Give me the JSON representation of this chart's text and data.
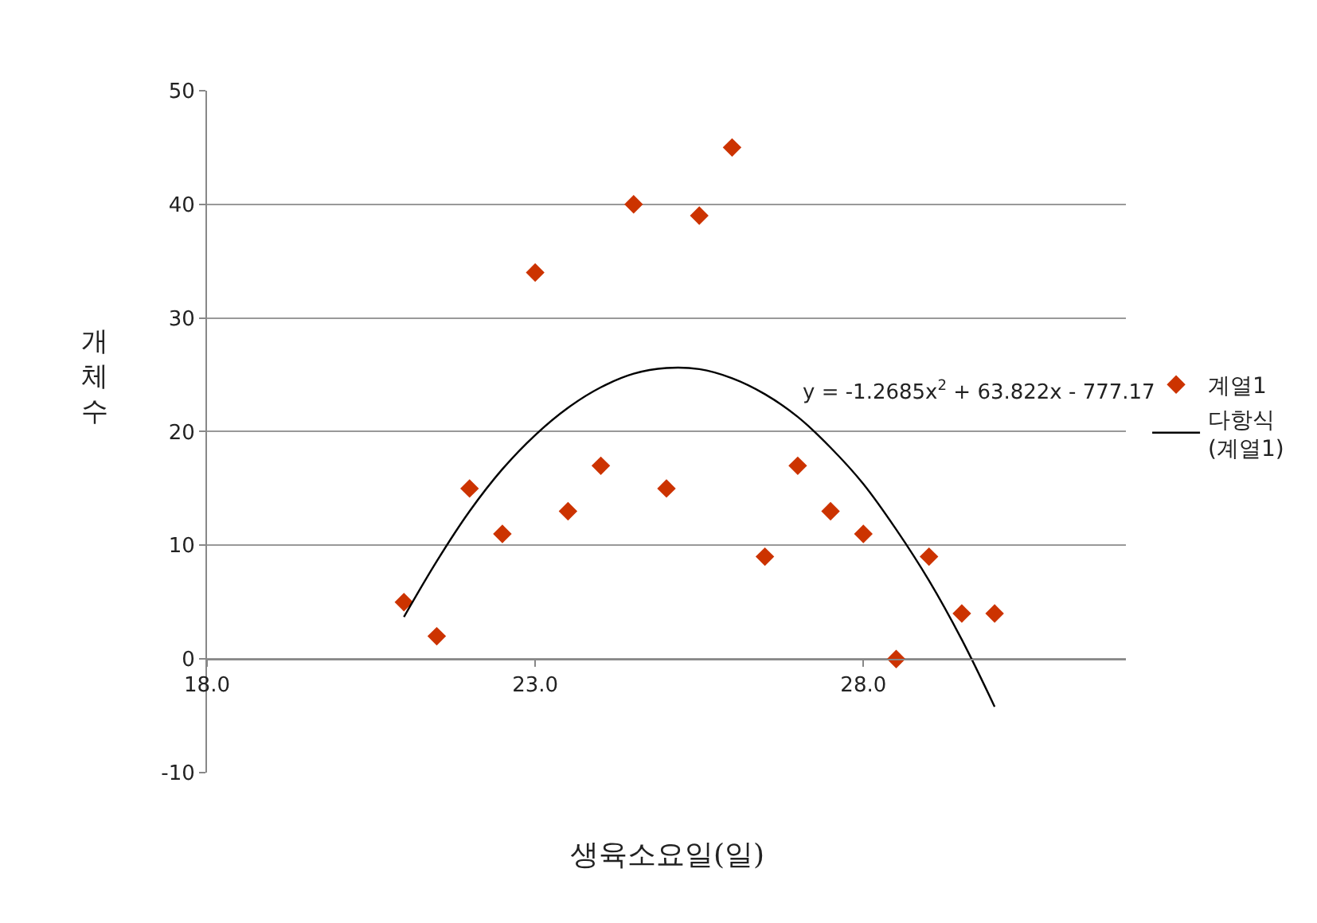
{
  "chart_data": {
    "type": "scatter",
    "xlabel": "생육소요일(일)",
    "ylabel": "개체수",
    "xlim": [
      18,
      32
    ],
    "xticks": [
      {
        "value": 18,
        "label": "18.0"
      },
      {
        "value": 23,
        "label": "23.0"
      },
      {
        "value": 28,
        "label": "28.0"
      }
    ],
    "ylim": [
      -10,
      50
    ],
    "yticks": [
      -10,
      0,
      10,
      20,
      30,
      40,
      50
    ],
    "grid": "y",
    "legend": "right",
    "annotations": [
      "y = -1.2685x$^{2}$ + 63.822x - 777.17"
    ],
    "series": [
      {
        "name": "계열1",
        "marker": "diamond",
        "color": "#cc3300",
        "x": [
          21.0,
          21.5,
          22.0,
          22.5,
          23.0,
          23.5,
          24.0,
          24.5,
          25.0,
          25.5,
          26.0,
          26.5,
          27.0,
          27.5,
          28.0,
          28.5,
          29.0,
          29.5,
          30.0
        ],
        "values": [
          5,
          2,
          15,
          11,
          34,
          13,
          17,
          40,
          15,
          39,
          45,
          9,
          17,
          13,
          11,
          0,
          9,
          4,
          4
        ]
      },
      {
        "name": "다항식\n(계열1)",
        "type": "line",
        "marker": "none",
        "color": "#000000",
        "x": [
          21.0,
          21.5,
          22.0,
          22.5,
          23.0,
          23.5,
          24.0,
          24.5,
          25.0,
          25.5,
          26.0,
          26.5,
          27.0,
          27.5,
          28.0,
          28.5,
          29.0,
          29.5,
          30.0
        ],
        "values": [
          3.7,
          8.6,
          13.0,
          16.7,
          19.7,
          22.1,
          23.9,
          25.1,
          25.6,
          25.5,
          24.7,
          23.3,
          21.3,
          18.6,
          15.4,
          11.4,
          6.9,
          1.7,
          -4.2
        ]
      }
    ]
  }
}
